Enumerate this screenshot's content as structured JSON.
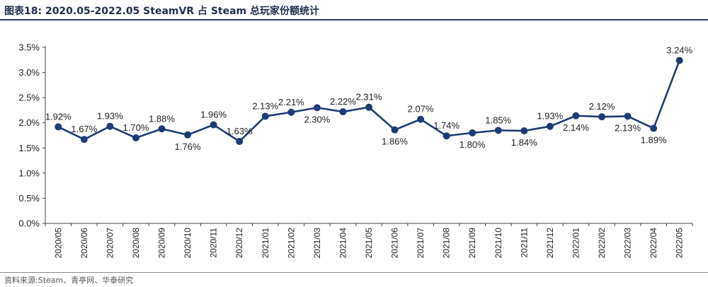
{
  "header": {
    "title": "图表18:  2020.05-2022.05 SteamVR 占 Steam 总玩家份额统计"
  },
  "footer": {
    "source": "资料来源:Steam、青亭网、华泰研究"
  },
  "colors": {
    "series": "#1f3b73",
    "axis": "#444444",
    "rule": "#2a3f6e"
  },
  "chart_data": {
    "type": "line",
    "title": "",
    "xlabel": "",
    "ylabel": "",
    "ylim": [
      0,
      3.5
    ],
    "y_ticks": [
      "0.0%",
      "0.5%",
      "1.0%",
      "1.5%",
      "2.0%",
      "2.5%",
      "3.0%",
      "3.5%"
    ],
    "grid": false,
    "legend": "none",
    "categories": [
      "2020/05",
      "2020/06",
      "2020/07",
      "2020/08",
      "2020/09",
      "2020/10",
      "2020/11",
      "2020/12",
      "2021/01",
      "2021/02",
      "2021/03",
      "2021/04",
      "2021/05",
      "2021/06",
      "2021/07",
      "2021/08",
      "2021/09",
      "2021/10",
      "2021/11",
      "2021/12",
      "2022/01",
      "2022/02",
      "2022/03",
      "2022/04",
      "2022/05"
    ],
    "values": [
      1.92,
      1.67,
      1.93,
      1.7,
      1.88,
      1.76,
      1.96,
      1.63,
      2.13,
      2.21,
      2.3,
      2.22,
      2.31,
      1.86,
      2.07,
      1.74,
      1.8,
      1.85,
      1.84,
      1.93,
      2.14,
      2.12,
      2.13,
      1.89,
      3.24
    ],
    "labels": [
      "1.92%",
      "1.67%",
      "1.93%",
      "1.70%",
      "1.88%",
      "1.76%",
      "1.96%",
      "1.63%",
      "2.13%",
      "2.21%",
      "2.30%",
      "2.22%",
      "2.31%",
      "1.86%",
      "2.07%",
      "1.74%",
      "1.80%",
      "1.85%",
      "1.84%",
      "1.93%",
      "2.14%",
      "2.12%",
      "2.13%",
      "1.89%",
      "3.24%"
    ],
    "label_positions": [
      "above",
      "above",
      "above",
      "above",
      "above",
      "below",
      "above",
      "above",
      "above",
      "above",
      "below",
      "above",
      "above",
      "below",
      "above",
      "above",
      "below",
      "above",
      "below",
      "above",
      "below",
      "above",
      "below",
      "below",
      "above"
    ]
  }
}
